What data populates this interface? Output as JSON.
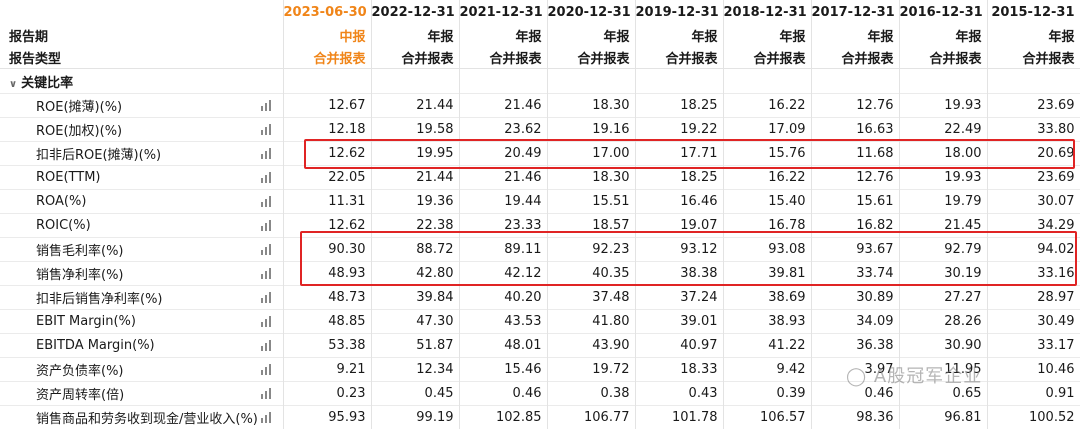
{
  "header": {
    "row1_label": "",
    "periods": [
      "2023-06-30",
      "2022-12-31",
      "2021-12-31",
      "2020-12-31",
      "2019-12-31",
      "2018-12-31",
      "2017-12-31",
      "2016-12-31",
      "2015-12-31"
    ],
    "row2_label": "报告期",
    "report_periods": [
      "中报",
      "年报",
      "年报",
      "年报",
      "年报",
      "年报",
      "年报",
      "年报",
      "年报"
    ],
    "row3_label": "报告类型",
    "report_types": [
      "合并报表",
      "合并报表",
      "合并报表",
      "合并报表",
      "合并报表",
      "合并报表",
      "合并报表",
      "合并报表",
      "合并报表"
    ],
    "highlight_color": "#f08519"
  },
  "section": {
    "label": "关键比率",
    "icon": "chevron-down-icon"
  },
  "rows": [
    {
      "label": "ROE(摊薄)(%)",
      "values": [
        "12.67",
        "21.44",
        "21.46",
        "18.30",
        "18.25",
        "16.22",
        "12.76",
        "19.93",
        "23.69"
      ]
    },
    {
      "label": "ROE(加权)(%)",
      "values": [
        "12.18",
        "19.58",
        "23.62",
        "19.16",
        "19.22",
        "17.09",
        "16.63",
        "22.49",
        "33.80"
      ]
    },
    {
      "label": "扣非后ROE(摊薄)(%)",
      "values": [
        "12.62",
        "19.95",
        "20.49",
        "17.00",
        "17.71",
        "15.76",
        "11.68",
        "18.00",
        "20.69"
      ]
    },
    {
      "label": "ROE(TTM)",
      "values": [
        "22.05",
        "21.44",
        "21.46",
        "18.30",
        "18.25",
        "16.22",
        "12.76",
        "19.93",
        "23.69"
      ]
    },
    {
      "label": "ROA(%)",
      "values": [
        "11.31",
        "19.36",
        "19.44",
        "15.51",
        "16.46",
        "15.40",
        "15.61",
        "19.79",
        "30.07"
      ]
    },
    {
      "label": "ROIC(%)",
      "values": [
        "12.62",
        "22.38",
        "23.33",
        "18.57",
        "19.07",
        "16.78",
        "16.82",
        "21.45",
        "34.29"
      ]
    },
    {
      "label": "销售毛利率(%)",
      "values": [
        "90.30",
        "88.72",
        "89.11",
        "92.23",
        "93.12",
        "93.08",
        "93.67",
        "92.79",
        "94.02"
      ]
    },
    {
      "label": "销售净利率(%)",
      "values": [
        "48.93",
        "42.80",
        "42.12",
        "40.35",
        "38.38",
        "39.81",
        "33.74",
        "30.19",
        "33.16"
      ]
    },
    {
      "label": "扣非后销售净利率(%)",
      "values": [
        "48.73",
        "39.84",
        "40.20",
        "37.48",
        "37.24",
        "38.69",
        "30.89",
        "27.27",
        "28.97"
      ]
    },
    {
      "label": "EBIT Margin(%)",
      "values": [
        "48.85",
        "47.30",
        "43.53",
        "41.80",
        "39.01",
        "38.93",
        "34.09",
        "28.26",
        "30.49"
      ]
    },
    {
      "label": "EBITDA Margin(%)",
      "values": [
        "53.38",
        "51.87",
        "48.01",
        "43.90",
        "40.97",
        "41.22",
        "36.38",
        "30.90",
        "33.17"
      ]
    },
    {
      "label": "资产负债率(%)",
      "values": [
        "9.21",
        "12.34",
        "15.46",
        "19.72",
        "18.33",
        "9.42",
        "3.97",
        "11.95",
        "10.46"
      ]
    },
    {
      "label": "资产周转率(倍)",
      "values": [
        "0.23",
        "0.45",
        "0.46",
        "0.38",
        "0.43",
        "0.39",
        "0.46",
        "0.65",
        "0.91"
      ]
    },
    {
      "label": "销售商品和劳务收到现金/营业收入(%)",
      "values": [
        "95.93",
        "99.19",
        "102.85",
        "106.77",
        "101.78",
        "106.57",
        "98.36",
        "96.81",
        "100.52"
      ]
    }
  ],
  "row_icon": "bar-chart-icon",
  "watermark": "A股冠军企业",
  "annotation_color": "#e02424"
}
